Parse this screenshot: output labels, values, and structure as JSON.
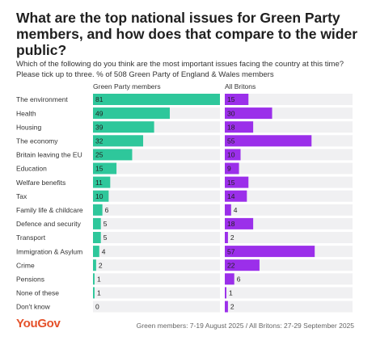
{
  "title": "What are the top national issues for Green Party members, and how does that compare to the wider public?",
  "subtitle": "Which of the following do you think are the most important issues facing the country at this time? Please tick up to three. % of 508 Green Party of England & Wales members",
  "footer": {
    "logo": "YouGov",
    "note": "Green members: 7-19 August 2025 / All Britons: 27-29 September 2025"
  },
  "colors": {
    "green": "#2ec79b",
    "purple": "#9b2fea",
    "track": "#f0f0f2",
    "accent": "#e5512a"
  },
  "chart_data": {
    "type": "bar",
    "orientation": "horizontal",
    "categories": [
      "The environment",
      "Health",
      "Housing",
      "The economy",
      "Britain leaving the EU",
      "Education",
      "Welfare benefits",
      "Tax",
      "Family life & childcare",
      "Defence and security",
      "Transport",
      "Immigration & Asylum",
      "Crime",
      "Pensions",
      "None of these",
      "Don't know"
    ],
    "series": [
      {
        "name": "Green Party members",
        "color": "#2ec79b",
        "values": [
          81,
          49,
          39,
          32,
          25,
          15,
          11,
          10,
          6,
          5,
          5,
          4,
          2,
          1,
          1,
          0
        ]
      },
      {
        "name": "All Britons",
        "color": "#9b2fea",
        "values": [
          15,
          30,
          18,
          55,
          10,
          9,
          15,
          14,
          4,
          18,
          2,
          57,
          22,
          6,
          1,
          2
        ]
      }
    ],
    "xlim": [
      0,
      81
    ],
    "grid": false,
    "legend": "top, above each panel"
  }
}
